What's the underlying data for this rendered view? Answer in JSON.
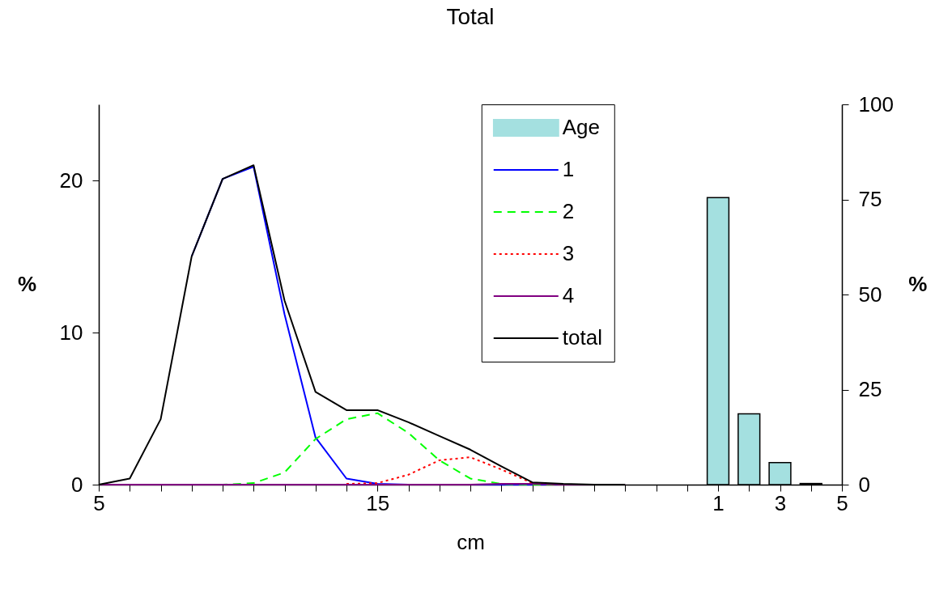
{
  "chart_data": {
    "type": "line",
    "title": "Total",
    "xlabel": "cm",
    "ylabel": "%",
    "y2label": "%",
    "categories": [
      "5",
      null,
      null,
      null,
      null,
      null,
      null,
      null,
      null,
      "15",
      null,
      null,
      null,
      null,
      null,
      null,
      null,
      null,
      null,
      null,
      "1",
      null,
      "3",
      null,
      "5"
    ],
    "series": [
      {
        "name": "Age",
        "type": "bar",
        "axis": "y2",
        "color": "#a4e0e0",
        "values": [
          null,
          null,
          null,
          null,
          null,
          null,
          null,
          null,
          null,
          null,
          null,
          null,
          null,
          null,
          null,
          null,
          null,
          null,
          null,
          null,
          75.5,
          18.6,
          5.8,
          0.3,
          null
        ]
      },
      {
        "name": "1",
        "color": "#0000ff",
        "line_style": "solid",
        "values": [
          null,
          null,
          null,
          15,
          20.1,
          20.9,
          11.2,
          3.1,
          0.4,
          0.05,
          0,
          0,
          0,
          0,
          0,
          0,
          null,
          null,
          null,
          null,
          null,
          null,
          null,
          null,
          null
        ]
      },
      {
        "name": "2",
        "color": "#00ff00",
        "line_style": "dashed",
        "values": [
          null,
          null,
          null,
          0,
          0,
          0.1,
          0.8,
          3,
          4.3,
          4.7,
          3.4,
          1.6,
          0.4,
          0.05,
          0,
          0,
          null,
          null,
          null,
          null,
          null,
          null,
          null,
          null,
          null
        ]
      },
      {
        "name": "3",
        "color": "#ff0000",
        "line_style": "dotted",
        "values": [
          null,
          null,
          null,
          null,
          null,
          null,
          null,
          null,
          0.05,
          0.1,
          0.65,
          1.6,
          1.8,
          1,
          0.1,
          0,
          null,
          null,
          null,
          null,
          null,
          null,
          null,
          null,
          null
        ]
      },
      {
        "name": "4",
        "color": "#800080",
        "line_style": "solid",
        "values": [
          0,
          0,
          0,
          0,
          0,
          0,
          0,
          0,
          0,
          0,
          0,
          0,
          0,
          0.05,
          0.05,
          0,
          0,
          0,
          null,
          null,
          null,
          null,
          null,
          null,
          null
        ]
      },
      {
        "name": "total",
        "color": "#000000",
        "line_style": "solid",
        "values": [
          0,
          0.4,
          4.3,
          15,
          20.1,
          21,
          12.1,
          6.1,
          4.9,
          4.9,
          4.1,
          3.2,
          2.3,
          1.2,
          0.15,
          0.05,
          0,
          0,
          null,
          null,
          null,
          null,
          null,
          null,
          null
        ]
      }
    ],
    "ylim": [
      0,
      25
    ],
    "yticks": [
      0,
      10,
      20
    ],
    "y2lim": [
      0,
      100
    ],
    "y2ticks": [
      0,
      25,
      50,
      75,
      100
    ],
    "legend": "top right"
  }
}
